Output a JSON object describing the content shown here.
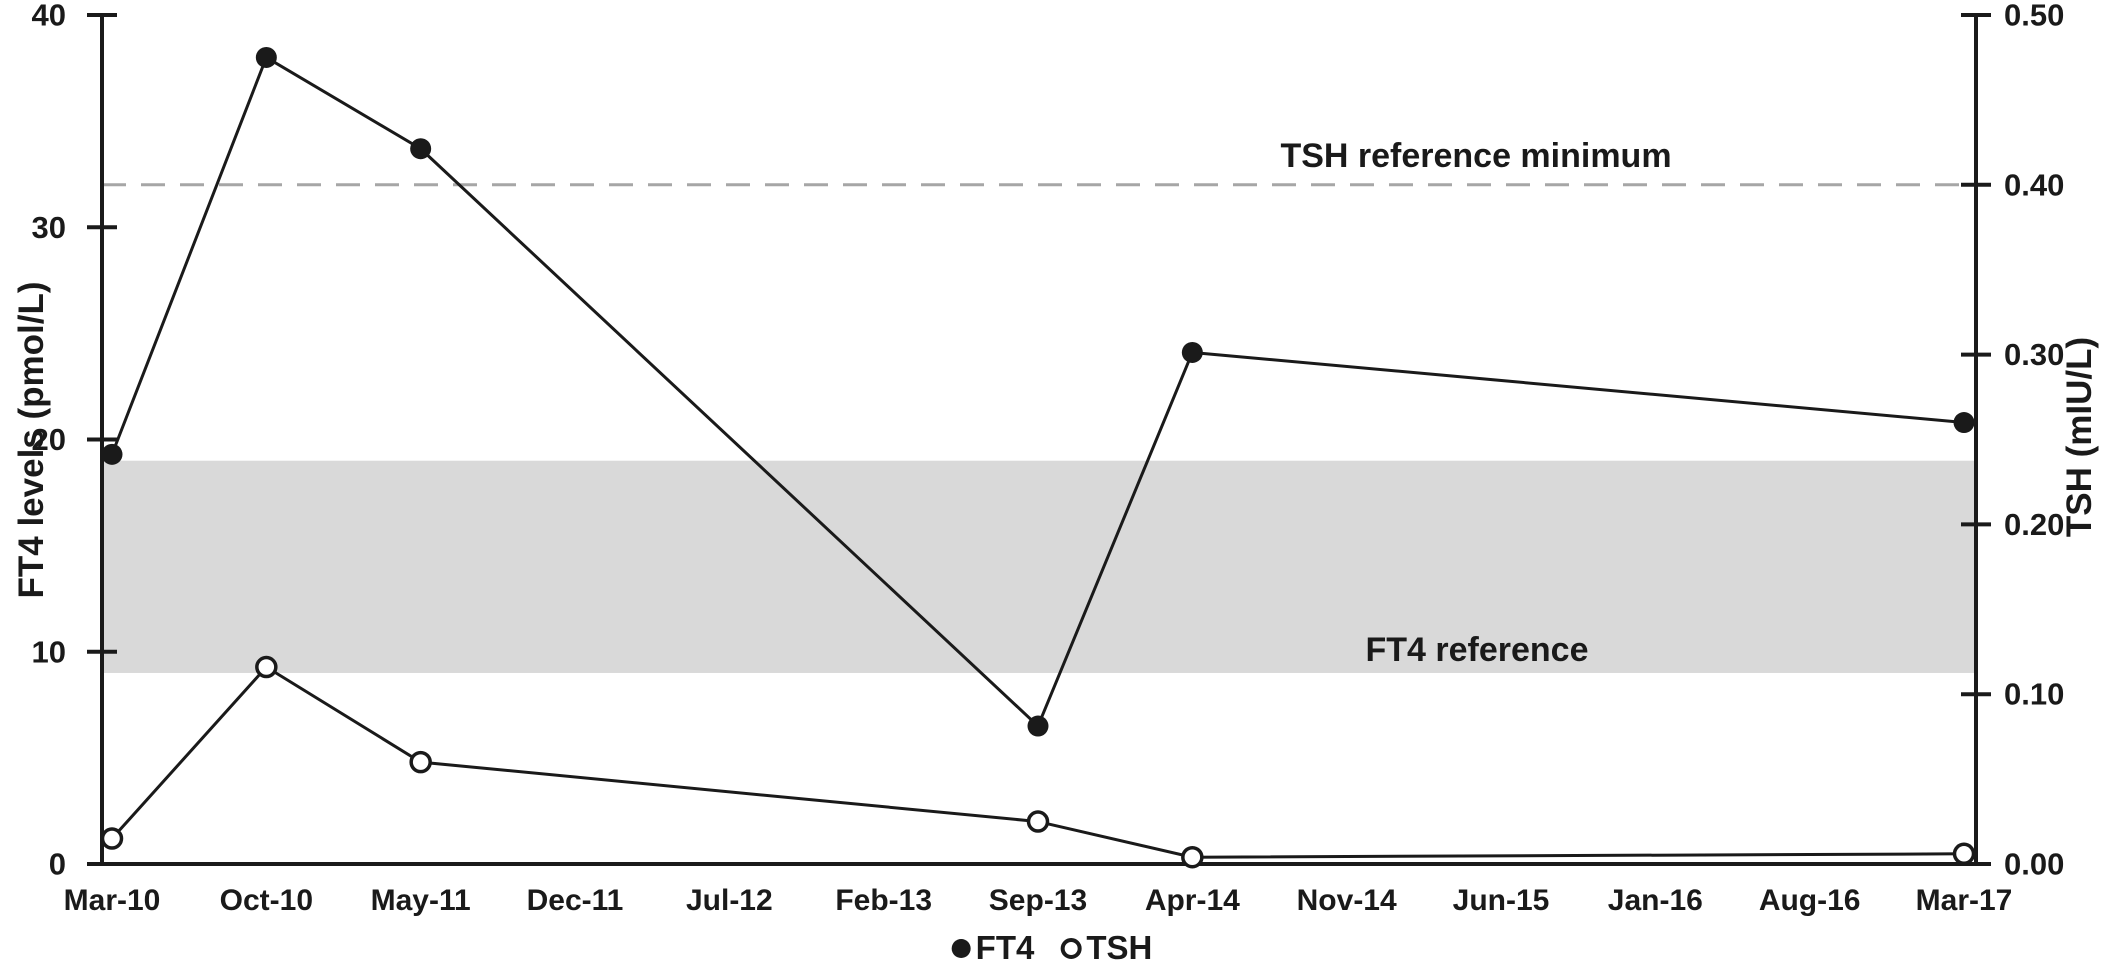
{
  "figure": {
    "background": "#ffffff",
    "text_color": "#1a1a1a",
    "legend": {
      "position": "bottom-center",
      "items": [
        {
          "marker": "filled-circle",
          "label": "FT4"
        },
        {
          "marker": "open-circle",
          "label": "TSH"
        }
      ]
    }
  },
  "chart_data": {
    "type": "line",
    "categories": [
      "Mar-10",
      "Oct-10",
      "May-11",
      "Dec-11",
      "Jul-12",
      "Feb-13",
      "Sep-13",
      "Apr-14",
      "Nov-14",
      "Jun-15",
      "Jan-16",
      "Aug-16",
      "Mar-17"
    ],
    "series": [
      {
        "name": "FT4",
        "axis": "left",
        "marker": "filled-circle",
        "color": "#1a1a1a",
        "points": [
          {
            "category": "Mar-10",
            "value": 19.3
          },
          {
            "category": "Oct-10",
            "value": 38.0
          },
          {
            "category": "May-11",
            "value": 33.7
          },
          {
            "category": "Sep-13",
            "value": 6.5
          },
          {
            "category": "Apr-14",
            "value": 24.1
          },
          {
            "category": "Mar-17",
            "value": 20.8
          }
        ]
      },
      {
        "name": "TSH",
        "axis": "right",
        "marker": "open-circle",
        "color": "#1a1a1a",
        "points": [
          {
            "category": "Mar-10",
            "value": 0.015
          },
          {
            "category": "Oct-10",
            "value": 0.116
          },
          {
            "category": "May-11",
            "value": 0.06
          },
          {
            "category": "Sep-13",
            "value": 0.025
          },
          {
            "category": "Apr-14",
            "value": 0.004
          },
          {
            "category": "Mar-17",
            "value": 0.006
          }
        ]
      }
    ],
    "y_left": {
      "label": "FT4 levels (pmol/L)",
      "min": 0,
      "max": 40,
      "ticks": [
        0,
        10,
        20,
        30,
        40
      ],
      "tick_labels": [
        "0",
        "10",
        "20",
        "30",
        "40"
      ]
    },
    "y_right": {
      "label": "TSH (mIU/L)",
      "min": 0,
      "max": 0.5,
      "ticks": [
        0,
        0.1,
        0.2,
        0.3,
        0.4,
        0.5
      ],
      "tick_labels": [
        "0.00",
        "0.10",
        "0.20",
        "0.30",
        "0.40",
        "0.50"
      ]
    },
    "reference_band": {
      "axis": "left",
      "from": 9,
      "to": 19,
      "color": "#d9d9d9",
      "label": "FT4 reference"
    },
    "reference_line": {
      "axis": "right",
      "value": 0.4,
      "style": "dashed",
      "color": "#a6a6a6",
      "label": "TSH reference minimum"
    },
    "grid": false,
    "legend_position": "bottom-center"
  }
}
